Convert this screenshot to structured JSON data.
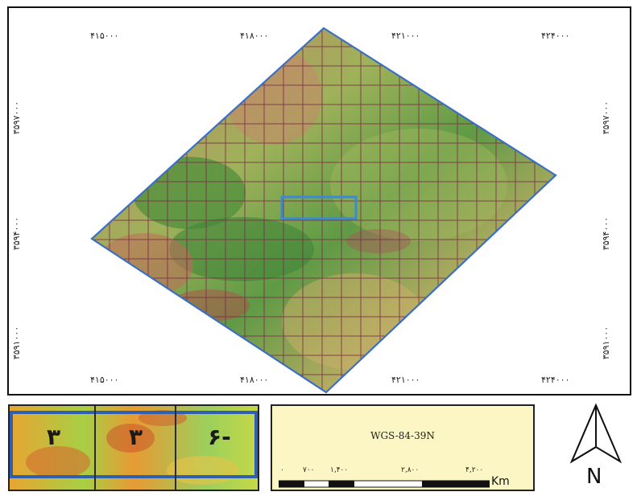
{
  "map": {
    "top_labels": [
      "۴۱۵۰۰۰",
      "۴۱۸۰۰۰",
      "۴۲۱۰۰۰",
      "۴۲۴۰۰۰"
    ],
    "bottom_labels": [
      "۴۱۵۰۰۰",
      "۴۱۸۰۰۰",
      "۴۲۱۰۰۰",
      "۴۲۴۰۰۰"
    ],
    "left_labels": [
      "۳۵۹۷۰۰۰",
      "۳۵۹۴۰۰۰",
      "۳۵۹۱۰۰۰"
    ],
    "right_labels": [
      "۳۵۹۷۰۰۰",
      "۳۵۹۴۰۰۰",
      "۳۵۹۱۰۰۰"
    ],
    "boundary_color": "#3a6fc4",
    "grid_color": "#7a2e4a"
  },
  "inset": {
    "labels": [
      "۳",
      "۳",
      "۶-"
    ],
    "border_color": "#2f5fb0"
  },
  "scale": {
    "datum": "WGS-84-39N",
    "ticks": [
      "۰",
      "۷۰۰",
      "۱,۴۰۰",
      "۲,۸۰۰",
      "۴,۲۰۰"
    ],
    "unit": "Km"
  },
  "north_arrow": {
    "label": "N",
    "icon": "north-arrow-icon"
  }
}
